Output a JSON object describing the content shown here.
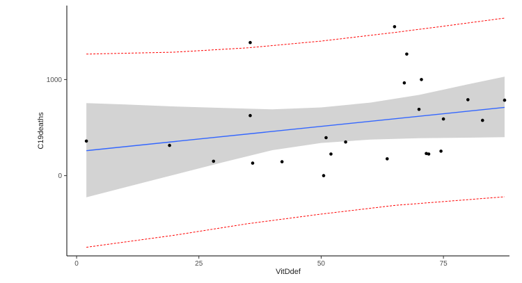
{
  "chart_data": {
    "type": "scatter",
    "title": "",
    "xlabel": "VitDdef",
    "ylabel": "C19deaths",
    "xlim": [
      -2,
      88.5
    ],
    "ylim": [
      -835,
      1770
    ],
    "x_ticks": [
      0,
      25,
      50,
      75
    ],
    "y_ticks": [
      0,
      1000
    ],
    "grid": false,
    "legend": "none",
    "points": [
      {
        "x": 2,
        "y": 360
      },
      {
        "x": 19,
        "y": 315
      },
      {
        "x": 28,
        "y": 150
      },
      {
        "x": 35.5,
        "y": 625
      },
      {
        "x": 35.5,
        "y": 1385
      },
      {
        "x": 36,
        "y": 130
      },
      {
        "x": 42,
        "y": 145
      },
      {
        "x": 50.5,
        "y": 0
      },
      {
        "x": 51,
        "y": 395
      },
      {
        "x": 52,
        "y": 225
      },
      {
        "x": 55,
        "y": 350
      },
      {
        "x": 63.5,
        "y": 175
      },
      {
        "x": 65,
        "y": 1550
      },
      {
        "x": 67,
        "y": 965
      },
      {
        "x": 67.5,
        "y": 1265
      },
      {
        "x": 70,
        "y": 690
      },
      {
        "x": 70.5,
        "y": 1000
      },
      {
        "x": 71.5,
        "y": 230
      },
      {
        "x": 72,
        "y": 225
      },
      {
        "x": 74.5,
        "y": 255
      },
      {
        "x": 75,
        "y": 590
      },
      {
        "x": 80,
        "y": 790
      },
      {
        "x": 83,
        "y": 575
      },
      {
        "x": 87.5,
        "y": 785
      }
    ],
    "fit_line": {
      "x": [
        2,
        87.5
      ],
      "y": [
        260,
        710
      ]
    },
    "confidence_band": {
      "x": [
        2,
        10,
        20,
        30,
        40,
        50,
        60,
        70,
        80,
        87.5
      ],
      "lower": [
        -225,
        -120,
        10,
        140,
        265,
        340,
        375,
        390,
        395,
        400
      ],
      "upper": [
        755,
        740,
        720,
        705,
        690,
        710,
        760,
        840,
        950,
        1030
      ]
    },
    "prediction_band": {
      "x": [
        2,
        20,
        35,
        50,
        65,
        75,
        87.5
      ],
      "lower": [
        -745,
        -620,
        -500,
        -400,
        -310,
        -270,
        -220
      ],
      "upper": [
        1265,
        1285,
        1330,
        1400,
        1490,
        1555,
        1640
      ]
    },
    "colors": {
      "points": "#000000",
      "fit_line": "#3366ff",
      "confidence_band": "#d3d3d3",
      "prediction_band": "#ff0000",
      "axis": "#000000"
    }
  }
}
